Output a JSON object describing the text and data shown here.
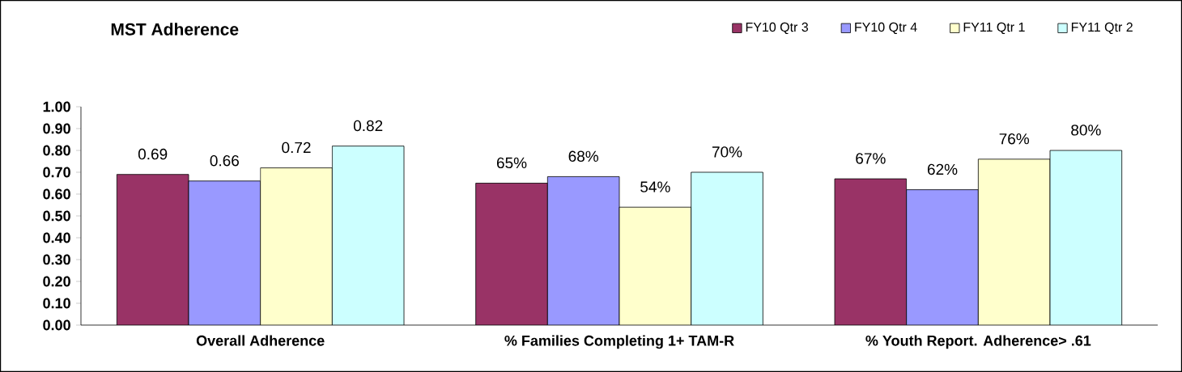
{
  "chart_data": {
    "type": "bar",
    "title": "MST Adherence",
    "categories": [
      "Overall Adherence",
      "% Families Completing 1+ TAM-R",
      "% Youth Report. Adherence> .61"
    ],
    "series": [
      {
        "name": "FY10 Qtr 3",
        "color": "#993366",
        "values": [
          0.69,
          0.65,
          0.67
        ],
        "value_labels": [
          "0.69",
          "65%",
          "67%"
        ]
      },
      {
        "name": "FY10 Qtr 4",
        "color": "#9999ff",
        "values": [
          0.66,
          0.68,
          0.62
        ],
        "value_labels": [
          "0.66",
          "68%",
          "62%"
        ]
      },
      {
        "name": "FY11 Qtr 1",
        "color": "#ffffcc",
        "values": [
          0.72,
          0.54,
          0.76
        ],
        "value_labels": [
          "0.72",
          "54%",
          "76%"
        ]
      },
      {
        "name": "FY11 Qtr 2",
        "color": "#ccffff",
        "values": [
          0.82,
          0.7,
          0.8
        ],
        "value_labels": [
          "0.82",
          "70%",
          "80%"
        ]
      }
    ],
    "ylim": [
      0,
      1
    ],
    "yticks": [
      {
        "value": 0,
        "label": "0.00"
      },
      {
        "value": 0.1,
        "label": "0.10"
      },
      {
        "value": 0.2,
        "label": "0.20"
      },
      {
        "value": 0.3,
        "label": "0.30"
      },
      {
        "value": 0.4,
        "label": "0.40"
      },
      {
        "value": 0.5,
        "label": "0.50"
      },
      {
        "value": 0.6,
        "label": "0.60"
      },
      {
        "value": 0.7,
        "label": "0.70"
      },
      {
        "value": 0.8,
        "label": "0.80"
      },
      {
        "value": 0.9,
        "label": "0.90"
      },
      {
        "value": 1,
        "label": "1.00"
      }
    ],
    "grid": false,
    "legend": "top right"
  }
}
